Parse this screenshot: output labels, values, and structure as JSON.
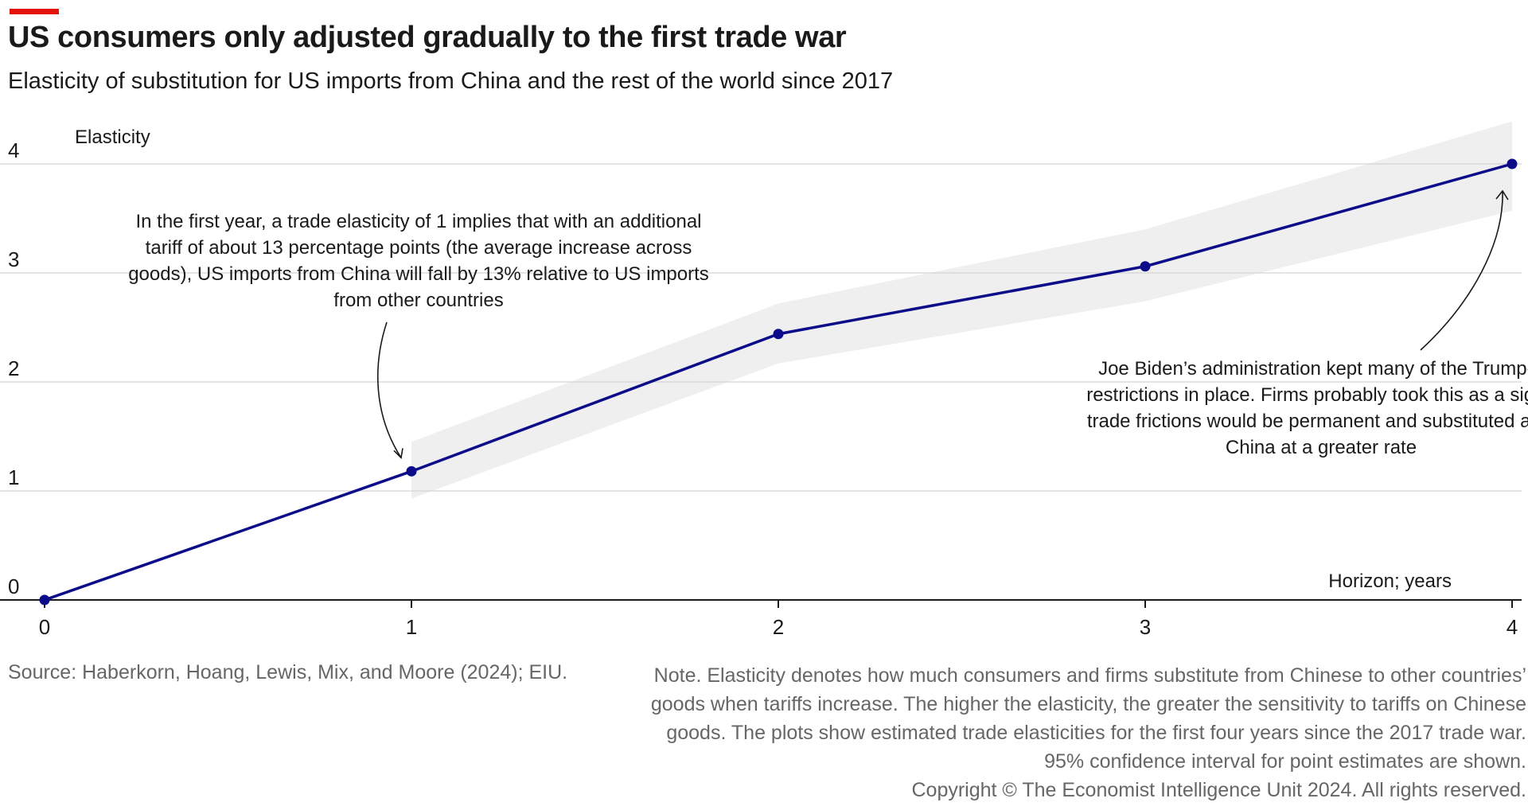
{
  "header": {
    "title": "US consumers only adjusted gradually to the first trade war",
    "subtitle": "Elasticity of substitution for US imports from China and the rest of the world since 2017"
  },
  "chart_data": {
    "type": "line",
    "title": "US consumers only adjusted gradually to the first trade war",
    "subtitle": "Elasticity of substitution for US imports from China and the rest of the world since 2017",
    "xlabel": "Horizon; years",
    "ylabel": "Elasticity",
    "x": [
      0,
      1,
      2,
      3,
      4
    ],
    "xticks": [
      "0",
      "1",
      "2",
      "3",
      "4"
    ],
    "yticks": [
      "0",
      "1",
      "2",
      "3",
      "4"
    ],
    "xlim": [
      0,
      4
    ],
    "ylim": [
      0,
      4
    ],
    "grid": true,
    "series": [
      {
        "values": [
          0,
          1.18,
          2.44,
          3.06,
          4.0
        ],
        "ci_lower": [
          null,
          0.93,
          2.17,
          2.74,
          3.57
        ],
        "ci_upper": [
          null,
          1.45,
          2.72,
          3.4,
          4.39
        ],
        "color": "#0c0c8a",
        "band_color": "#efefef"
      }
    ],
    "annotations": [
      {
        "lines": [
          "In the first year, a trade elasticity of 1 implies that with an additional",
          "tariff of about 13 percentage points (the average increase across",
          "goods), US imports from China will fall by 13% relative to US imports",
          "from other countries"
        ],
        "points_to": {
          "x": 1,
          "y": 1.18
        }
      },
      {
        "lines": [
          "Joe Biden’s administration kept many of the Trump-e",
          "restrictions in place. Firms probably took this as a signa",
          "trade frictions would be permanent and substituted awa",
          "China at a greater rate"
        ],
        "points_to": {
          "x": 4,
          "y": 4.0
        }
      }
    ]
  },
  "footer": {
    "source": "Source: Haberkorn, Hoang, Lewis, Mix, and Moore (2024); EIU.",
    "note_lines": [
      "Note. Elasticity denotes how much consumers and firms substitute from Chinese to other countries’",
      "goods when tariffs increase. The higher the elasticity, the greater the sensitivity to tariffs on Chinese",
      "goods. The plots show estimated trade elasticities for the first four years since the 2017 trade war.",
      "95% confidence interval for point estimates are shown.",
      "Copyright © The Economist Intelligence Unit 2024. All rights reserved."
    ]
  }
}
